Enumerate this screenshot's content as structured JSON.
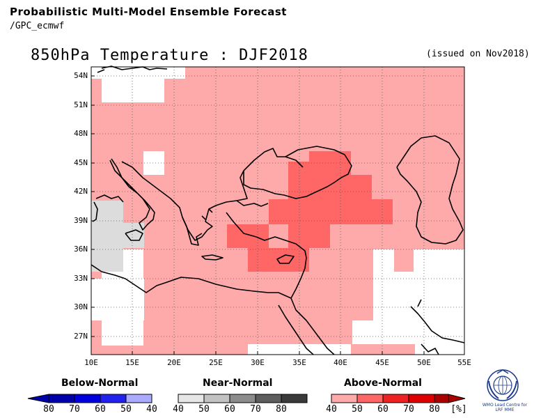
{
  "header": {
    "title": "Probabilistic Multi-Model Ensemble Forecast",
    "subtitle": "/GPC_ecmwf"
  },
  "map": {
    "title": "850hPa Temperature : DJF2018",
    "issued": "(issued on Nov2018)",
    "lat_labels": [
      "54N",
      "51N",
      "48N",
      "45N",
      "42N",
      "39N",
      "36N",
      "33N",
      "30N",
      "27N"
    ],
    "lon_labels": [
      "10E",
      "15E",
      "20E",
      "25E",
      "30E",
      "35E",
      "40E",
      "45E",
      "50E",
      "55E"
    ]
  },
  "legend": {
    "below": {
      "title": "Below-Normal",
      "labels": [
        "80",
        "70",
        "60",
        "50",
        "40"
      ],
      "colors": [
        "#0000aa",
        "#0000dd",
        "#2222ee",
        "#5555ee",
        "#aaaaff"
      ]
    },
    "near": {
      "title": "Near-Normal",
      "labels": [
        "40",
        "50",
        "60",
        "70",
        "80"
      ],
      "colors": [
        "#e6e6e6",
        "#c2c2c2",
        "#8c8c8c",
        "#5e5e5e",
        "#3a3a3a"
      ]
    },
    "above": {
      "title": "Above-Normal",
      "labels": [
        "40",
        "50",
        "60",
        "70",
        "80"
      ],
      "unit": "[%]",
      "colors": [
        "#ffaaaa",
        "#ff6666",
        "#ee2222",
        "#dd0000",
        "#aa0000"
      ]
    }
  },
  "logo": {
    "text": "WMO Lead Centre for LRF MME"
  }
}
